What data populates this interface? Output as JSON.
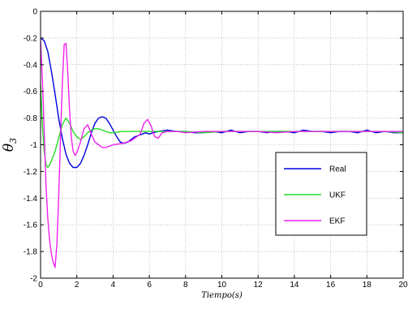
{
  "chart_data": {
    "type": "line",
    "xlabel": "Tiempo(s)",
    "ylabel": "θ",
    "ylabel_sub": "3",
    "xlim": [
      0,
      20
    ],
    "ylim": [
      -2,
      0
    ],
    "xticks": [
      0,
      2,
      4,
      6,
      8,
      10,
      12,
      14,
      16,
      18,
      20
    ],
    "yticks": [
      0,
      -0.2,
      -0.4,
      -0.6,
      -0.8,
      -1,
      -1.2,
      -1.4,
      -1.6,
      -1.8,
      -2
    ],
    "grid": true,
    "legend_position": "right",
    "series": [
      {
        "name": "Real",
        "color": "#0000dd",
        "x": [
          0,
          0.2,
          0.4,
          0.6,
          0.8,
          1.0,
          1.2,
          1.4,
          1.6,
          1.8,
          2.0,
          2.2,
          2.4,
          2.6,
          2.8,
          3.0,
          3.2,
          3.4,
          3.6,
          3.8,
          4.0,
          4.2,
          4.4,
          4.6,
          4.8,
          5.0,
          5.2,
          5.4,
          5.6,
          5.8,
          6.0,
          6.2,
          6.5,
          7.0,
          7.5,
          8.0,
          8.5,
          9.0,
          9.5,
          10.0,
          10.5,
          11.0,
          11.5,
          12.0,
          12.5,
          13.0,
          13.5,
          14.0,
          14.5,
          15.0,
          15.5,
          16.0,
          16.5,
          17.0,
          17.5,
          18.0,
          18.5,
          19.0,
          19.5,
          20.0
        ],
        "y": [
          -0.2,
          -0.22,
          -0.3,
          -0.45,
          -0.62,
          -0.8,
          -0.95,
          -1.07,
          -1.14,
          -1.17,
          -1.17,
          -1.14,
          -1.08,
          -1.0,
          -0.91,
          -0.84,
          -0.8,
          -0.79,
          -0.8,
          -0.84,
          -0.89,
          -0.94,
          -0.98,
          -0.99,
          -0.98,
          -0.96,
          -0.94,
          -0.93,
          -0.92,
          -0.91,
          -0.92,
          -0.91,
          -0.9,
          -0.89,
          -0.9,
          -0.9,
          -0.91,
          -0.91,
          -0.9,
          -0.91,
          -0.89,
          -0.91,
          -0.9,
          -0.9,
          -0.91,
          -0.9,
          -0.9,
          -0.91,
          -0.89,
          -0.9,
          -0.9,
          -0.91,
          -0.9,
          -0.9,
          -0.91,
          -0.89,
          -0.91,
          -0.9,
          -0.91,
          -0.91
        ]
      },
      {
        "name": "UKF",
        "color": "#22dd22",
        "x": [
          0,
          0.1,
          0.2,
          0.3,
          0.4,
          0.5,
          0.6,
          0.8,
          1.0,
          1.2,
          1.4,
          1.6,
          1.8,
          2.0,
          2.2,
          2.4,
          2.6,
          2.8,
          3.0,
          3.2,
          3.4,
          3.6,
          3.8,
          4.0,
          4.5,
          5.0,
          5.5,
          6.0,
          7.0,
          8.0,
          9.0,
          10.0,
          11.0,
          12.0,
          13.0,
          14.0,
          15.0,
          16.0,
          17.0,
          18.0,
          19.0,
          20.0
        ],
        "y": [
          -0.55,
          -0.85,
          -1.05,
          -1.15,
          -1.17,
          -1.15,
          -1.12,
          -1.05,
          -0.95,
          -0.85,
          -0.8,
          -0.84,
          -0.9,
          -0.94,
          -0.96,
          -0.94,
          -0.91,
          -0.89,
          -0.88,
          -0.88,
          -0.89,
          -0.9,
          -0.91,
          -0.91,
          -0.9,
          -0.9,
          -0.9,
          -0.9,
          -0.9,
          -0.9,
          -0.91,
          -0.9,
          -0.9,
          -0.9,
          -0.9,
          -0.9,
          -0.9,
          -0.9,
          -0.9,
          -0.9,
          -0.9,
          -0.91
        ]
      },
      {
        "name": "EKF",
        "color": "#ee22ee",
        "x": [
          0,
          0.1,
          0.2,
          0.3,
          0.4,
          0.5,
          0.6,
          0.7,
          0.8,
          0.9,
          1.0,
          1.1,
          1.2,
          1.3,
          1.4,
          1.5,
          1.6,
          1.7,
          1.8,
          1.9,
          2.0,
          2.2,
          2.4,
          2.6,
          2.8,
          3.0,
          3.2,
          3.4,
          3.6,
          3.8,
          4.0,
          4.5,
          5.0,
          5.5,
          5.7,
          5.9,
          6.1,
          6.3,
          6.5,
          6.7,
          7.0,
          7.5,
          8.0,
          9.0,
          10.0,
          11.0,
          12.0,
          13.0,
          14.0,
          15.0,
          16.0,
          17.0,
          18.0,
          19.0,
          20.0
        ],
        "y": [
          -0.22,
          -0.5,
          -0.9,
          -1.3,
          -1.55,
          -1.72,
          -1.82,
          -1.88,
          -1.92,
          -1.75,
          -1.4,
          -0.95,
          -0.55,
          -0.25,
          -0.24,
          -0.45,
          -0.75,
          -0.95,
          -1.05,
          -1.08,
          -1.06,
          -0.98,
          -0.88,
          -0.85,
          -0.92,
          -0.98,
          -1.0,
          -1.02,
          -1.02,
          -1.01,
          -1.0,
          -0.99,
          -0.97,
          -0.92,
          -0.84,
          -0.81,
          -0.86,
          -0.94,
          -0.95,
          -0.91,
          -0.9,
          -0.9,
          -0.91,
          -0.9,
          -0.9,
          -0.9,
          -0.9,
          -0.91,
          -0.9,
          -0.9,
          -0.9,
          -0.9,
          -0.9,
          -0.9,
          -0.9
        ]
      }
    ]
  }
}
